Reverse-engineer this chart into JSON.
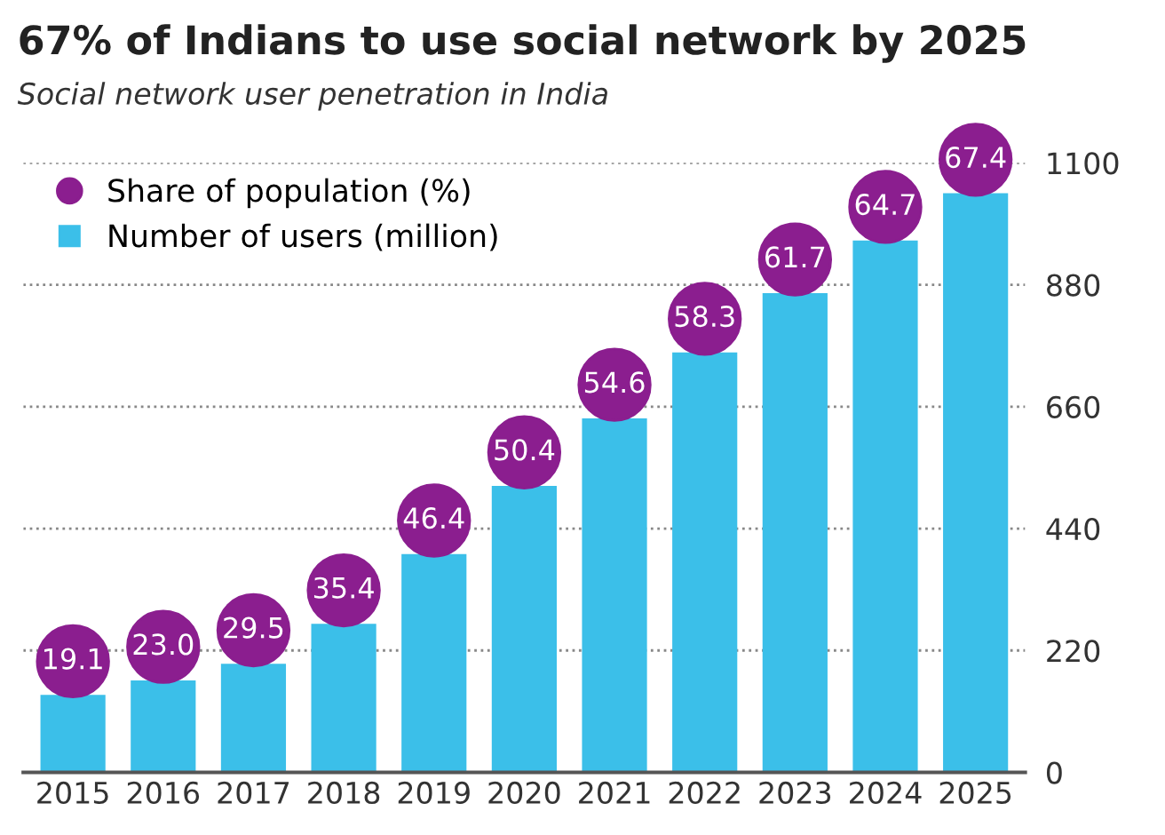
{
  "chart_data": {
    "type": "bar",
    "title": "67% of Indians to use social network by 2025",
    "subtitle": "Social network user penetration in India",
    "categories": [
      "2015",
      "2016",
      "2017",
      "2018",
      "2019",
      "2020",
      "2021",
      "2022",
      "2023",
      "2024",
      "2025"
    ],
    "series": [
      {
        "name": "Share of population (%)",
        "type": "scatter",
        "color": "#8b1e8f",
        "marker": "circle",
        "values": [
          null,
          null,
          null,
          null,
          null,
          null,
          null,
          null,
          null,
          null,
          null
        ]
      },
      {
        "name": "Number of users (million)",
        "color": "#3bbfe9",
        "values": [
          140,
          166,
          196,
          268,
          394,
          517,
          639,
          758,
          865,
          960,
          1045
        ]
      }
    ],
    "annotations": [
      {
        "text": "19.1",
        "x": "2015",
        "y": 140
      },
      {
        "text": "23.0",
        "x": "2016",
        "y": 166
      },
      {
        "text": "29.5",
        "x": "2017",
        "y": 196
      },
      {
        "text": "35.4",
        "x": "2018",
        "y": 268
      },
      {
        "text": "46.4",
        "x": "2019",
        "y": 394
      },
      {
        "text": "50.4",
        "x": "2020",
        "y": 517
      },
      {
        "text": "54.6",
        "x": "2021",
        "y": 639
      },
      {
        "text": "58.3",
        "x": "2022",
        "y": 758
      },
      {
        "text": "61.7",
        "x": "2023",
        "y": 865
      },
      {
        "text": "64.7",
        "x": "2024",
        "y": 960
      },
      {
        "text": "67.4",
        "x": "2025",
        "y": 1045
      }
    ],
    "ylim": [
      0,
      1100
    ],
    "yticks": [
      0,
      220,
      440,
      660,
      880,
      1100
    ],
    "grid": "y",
    "legend": "top left"
  }
}
